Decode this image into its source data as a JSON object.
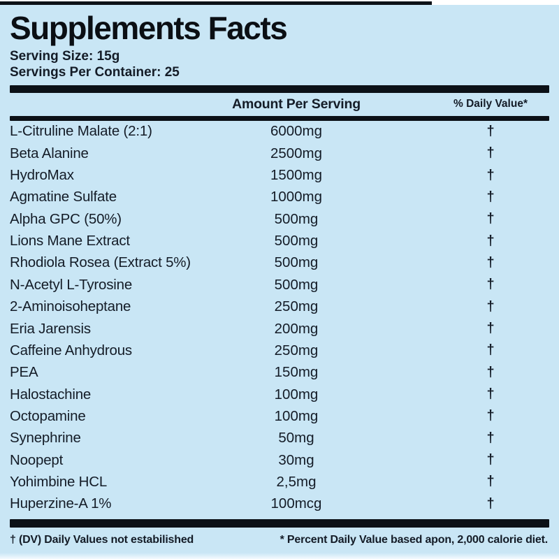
{
  "panel": {
    "title": "Supplements Facts",
    "serving_size": "Serving Size: 15g",
    "servings_per_container": "Servings Per Container: 25",
    "col_amount": "Amount Per Serving",
    "col_dv": "% Daily Value*",
    "footnote_left": "† (DV) Daily Values not estabilished",
    "footnote_right": "* Percent Daily Value based apon, 2,000 calorie diet.",
    "colors": {
      "background": "#c9e6f5",
      "ink": "#141c27",
      "bar": "#0c1117",
      "edge_white": "#ffffff"
    },
    "rows": [
      {
        "name": "L-Citruline Malate (2:1)",
        "amount": "6000mg",
        "dv": "†"
      },
      {
        "name": "Beta Alanine",
        "amount": "2500mg",
        "dv": "†"
      },
      {
        "name": "HydroMax",
        "amount": "1500mg",
        "dv": "†"
      },
      {
        "name": "Agmatine Sulfate",
        "amount": "1000mg",
        "dv": "†"
      },
      {
        "name": "Alpha GPC (50%)",
        "amount": "500mg",
        "dv": "†"
      },
      {
        "name": "Lions Mane Extract",
        "amount": "500mg",
        "dv": "†"
      },
      {
        "name": "Rhodiola Rosea (Extract 5%)",
        "amount": "500mg",
        "dv": "†"
      },
      {
        "name": "N-Acetyl L-Tyrosine",
        "amount": "500mg",
        "dv": "†"
      },
      {
        "name": "2-Aminoisoheptane",
        "amount": "250mg",
        "dv": "†"
      },
      {
        "name": "Eria Jarensis",
        "amount": "200mg",
        "dv": "†"
      },
      {
        "name": "Caffeine Anhydrous",
        "amount": "250mg",
        "dv": "†"
      },
      {
        "name": "PEA",
        "amount": "150mg",
        "dv": "†"
      },
      {
        "name": "Halostachine",
        "amount": "100mg",
        "dv": "†"
      },
      {
        "name": "Octopamine",
        "amount": "100mg",
        "dv": "†"
      },
      {
        "name": "Synephrine",
        "amount": "50mg",
        "dv": "†"
      },
      {
        "name": "Noopept",
        "amount": "30mg",
        "dv": "†"
      },
      {
        "name": "Yohimbine HCL",
        "amount": "2,5mg",
        "dv": "†"
      },
      {
        "name": "Huperzine-A 1%",
        "amount": "100mcg",
        "dv": "†"
      }
    ]
  }
}
